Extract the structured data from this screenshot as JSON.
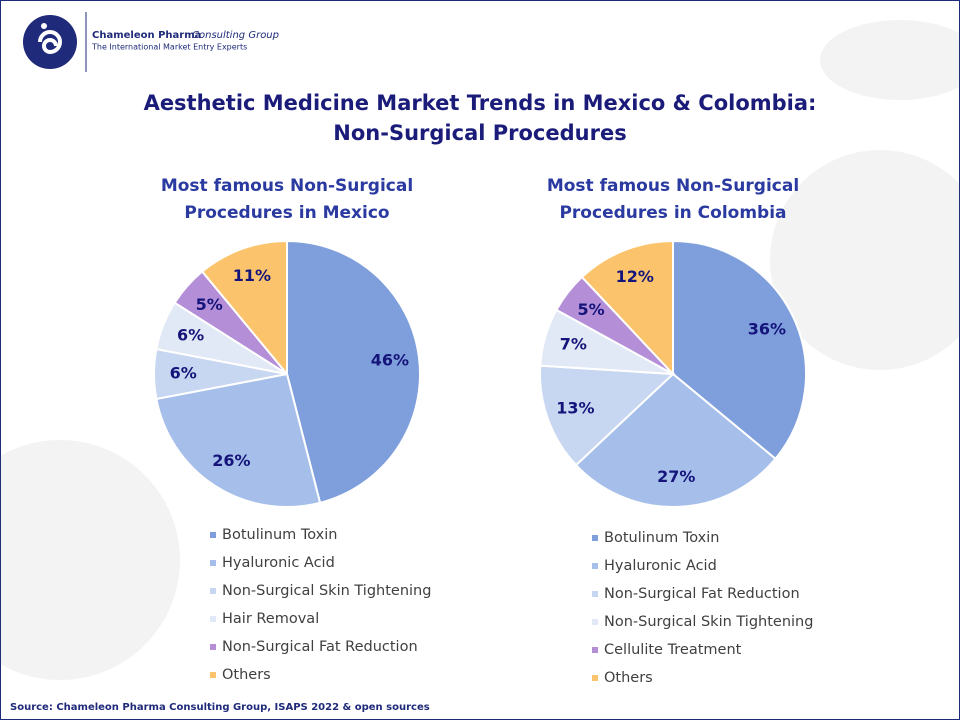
{
  "header": {
    "company": "Chameleon Pharma",
    "company_suffix": "Consulting Group",
    "tagline": "The International Market Entry Experts"
  },
  "title": [
    "Aesthetic Medicine Market Trends in Mexico & Colombia:",
    "Non-Surgical Procedures"
  ],
  "source": "Source: Chameleon Pharma Consulting Group, ISAPS 2022 & open sources",
  "chart_data": [
    {
      "type": "pie",
      "title": [
        "Most famous Non-Surgical",
        "Procedures in Mexico"
      ],
      "categories": [
        "Botulinum Toxin",
        "Hyaluronic Acid",
        "Non-Surgical Skin Tightening",
        "Hair Removal",
        "Non-Surgical Fat Reduction",
        "Others"
      ],
      "values": [
        46,
        26,
        6,
        6,
        5,
        11
      ],
      "value_labels": [
        "46%",
        "26%",
        "6%",
        "6%",
        "5%",
        "11%"
      ],
      "colors": [
        "#7f9fdc",
        "#a6bfea",
        "#c8d7f1",
        "#e1e8f6",
        "#b48fd8",
        "#fbc46c"
      ]
    },
    {
      "type": "pie",
      "title": [
        "Most famous Non-Surgical",
        "Procedures in Colombia"
      ],
      "categories": [
        "Botulinum Toxin",
        "Hyaluronic Acid",
        "Non-Surgical Fat Reduction",
        "Non-Surgical Skin Tightening",
        "Cellulite Treatment",
        "Others"
      ],
      "values": [
        36,
        27,
        13,
        7,
        5,
        12
      ],
      "value_labels": [
        "36%",
        "27%",
        "13%",
        "7%",
        "5%",
        "12%"
      ],
      "colors": [
        "#7f9fdc",
        "#a6bfea",
        "#c8d7f1",
        "#e1e8f6",
        "#b48fd8",
        "#fbc46c"
      ]
    }
  ]
}
